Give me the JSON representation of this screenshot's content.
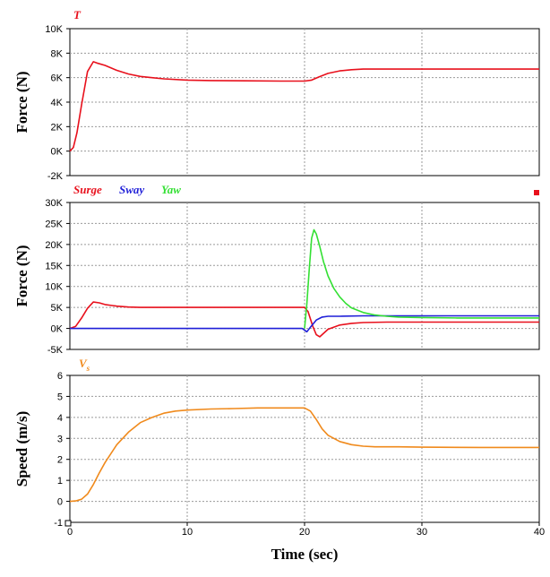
{
  "chart_data": [
    {
      "type": "line",
      "ylabel": "Force (N)",
      "xlim": [
        0,
        40
      ],
      "ylim": [
        -2000,
        10000
      ],
      "y_tick_labels": [
        "-2K",
        "0K",
        "2K",
        "4K",
        "6K",
        "8K",
        "10K"
      ],
      "grid": true,
      "legend": [
        {
          "text": "T",
          "color": "#e8101c"
        }
      ],
      "series": [
        {
          "name": "T",
          "color": "#e8101c",
          "x": [
            0,
            0.3,
            0.6,
            1.0,
            1.5,
            2.0,
            2.3,
            3.0,
            4.0,
            5.0,
            6.0,
            7.0,
            8.0,
            10.0,
            12.0,
            15.0,
            18.0,
            20.0,
            20.6,
            21.2,
            22.0,
            23.0,
            24.0,
            25.0,
            26.0,
            28.0,
            30.0,
            35.0,
            40.0
          ],
          "y": [
            0,
            300,
            1500,
            3800,
            6500,
            7300,
            7200,
            7000,
            6600,
            6300,
            6100,
            6000,
            5900,
            5800,
            5760,
            5740,
            5720,
            5720,
            5800,
            6050,
            6350,
            6550,
            6650,
            6700,
            6700,
            6700,
            6700,
            6700,
            6700
          ]
        }
      ]
    },
    {
      "type": "line",
      "ylabel": "Force (N)",
      "xlim": [
        0,
        40
      ],
      "ylim": [
        -5000,
        30000
      ],
      "y_tick_labels": [
        "-5K",
        "0K",
        "5K",
        "10K",
        "15K",
        "20K",
        "25K",
        "30K"
      ],
      "grid": true,
      "legend": [
        {
          "text": "Surge",
          "color": "#e8101c"
        },
        {
          "text": "Sway",
          "color": "#1f1fd8"
        },
        {
          "text": "Yaw",
          "color": "#33e033"
        }
      ],
      "series": [
        {
          "name": "Surge",
          "color": "#e8101c",
          "x": [
            0,
            0.5,
            1.0,
            1.5,
            2.0,
            2.5,
            3.0,
            4.0,
            5.0,
            6.0,
            8.0,
            10.0,
            15.0,
            20.0,
            20.3,
            20.7,
            21.0,
            21.3,
            22.0,
            23.0,
            24.0,
            25.0,
            27.0,
            30.0,
            35.0,
            40.0
          ],
          "y": [
            0,
            500,
            2500,
            4800,
            6300,
            6100,
            5700,
            5300,
            5100,
            5000,
            5000,
            5000,
            5000,
            5000,
            4000,
            500,
            -1500,
            -2000,
            -200,
            800,
            1200,
            1400,
            1500,
            1500,
            1500,
            1500
          ]
        },
        {
          "name": "Sway",
          "color": "#1f1fd8",
          "x": [
            0,
            5.0,
            10.0,
            15.0,
            19.8,
            20.2,
            20.5,
            21.0,
            21.5,
            22.0,
            23.0,
            25.0,
            30.0,
            35.0,
            40.0
          ],
          "y": [
            0,
            0,
            0,
            0,
            0,
            -800,
            300,
            2000,
            2700,
            2900,
            2900,
            3000,
            3000,
            3000,
            3000
          ]
        },
        {
          "name": "Yaw",
          "color": "#33e033",
          "x": [
            20.0,
            20.2,
            20.4,
            20.6,
            20.8,
            21.0,
            21.3,
            21.6,
            22.0,
            22.5,
            23.0,
            23.5,
            24.0,
            25.0,
            26.0,
            27.0,
            28.0,
            30.0,
            33.0,
            36.0,
            40.0
          ],
          "y": [
            0,
            6000,
            14000,
            21500,
            23500,
            22500,
            19500,
            16000,
            12500,
            9500,
            7500,
            6000,
            4900,
            3800,
            3200,
            2900,
            2700,
            2600,
            2500,
            2500,
            2500
          ]
        }
      ]
    },
    {
      "type": "line",
      "ylabel": "Speed (m/s)",
      "xlabel": "Time (sec)",
      "xlim": [
        0,
        40
      ],
      "ylim": [
        -1,
        6
      ],
      "x_tick_labels": [
        "0",
        "10",
        "20",
        "30",
        "40"
      ],
      "y_tick_labels": [
        "-1",
        "0",
        "1",
        "2",
        "3",
        "4",
        "5",
        "6"
      ],
      "grid": true,
      "legend": [
        {
          "text": "V",
          "subscript": "s",
          "color": "#f08a1c"
        }
      ],
      "series": [
        {
          "name": "Vs",
          "color": "#f08a1c",
          "x": [
            0,
            0.5,
            1.0,
            1.5,
            2.0,
            2.5,
            3.0,
            4.0,
            5.0,
            6.0,
            7.0,
            8.0,
            9.0,
            10.0,
            12.0,
            14.0,
            16.0,
            18.0,
            20.0,
            20.5,
            21.0,
            21.5,
            22.0,
            23.0,
            24.0,
            25.0,
            26.0,
            28.0,
            30.0,
            35.0,
            40.0
          ],
          "y": [
            0,
            0.02,
            0.1,
            0.35,
            0.8,
            1.35,
            1.85,
            2.7,
            3.3,
            3.75,
            4.0,
            4.2,
            4.3,
            4.35,
            4.4,
            4.42,
            4.45,
            4.45,
            4.45,
            4.3,
            3.9,
            3.45,
            3.15,
            2.85,
            2.7,
            2.63,
            2.6,
            2.6,
            2.58,
            2.57,
            2.57
          ]
        }
      ]
    }
  ]
}
